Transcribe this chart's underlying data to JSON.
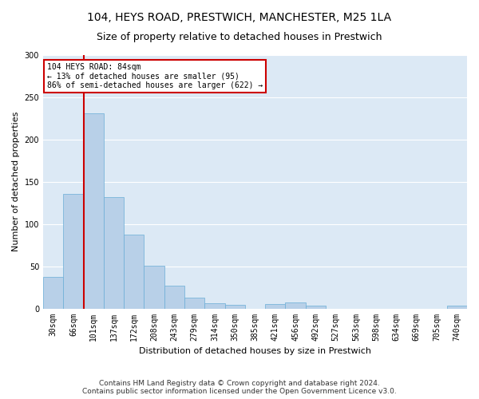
{
  "title1": "104, HEYS ROAD, PRESTWICH, MANCHESTER, M25 1LA",
  "title2": "Size of property relative to detached houses in Prestwich",
  "xlabel": "Distribution of detached houses by size in Prestwich",
  "ylabel": "Number of detached properties",
  "categories": [
    "30sqm",
    "66sqm",
    "101sqm",
    "137sqm",
    "172sqm",
    "208sqm",
    "243sqm",
    "279sqm",
    "314sqm",
    "350sqm",
    "385sqm",
    "421sqm",
    "456sqm",
    "492sqm",
    "527sqm",
    "563sqm",
    "598sqm",
    "634sqm",
    "669sqm",
    "705sqm",
    "740sqm"
  ],
  "values": [
    37,
    136,
    231,
    132,
    87,
    51,
    27,
    13,
    6,
    4,
    0,
    5,
    7,
    3,
    0,
    0,
    0,
    0,
    0,
    0,
    3
  ],
  "bar_color": "#b8d0e8",
  "bar_edge_color": "#6aaed6",
  "vline_color": "#cc0000",
  "annotation_text": "104 HEYS ROAD: 84sqm\n← 13% of detached houses are smaller (95)\n86% of semi-detached houses are larger (622) →",
  "annotation_box_color": "#ffffff",
  "annotation_box_edge": "#cc0000",
  "ylim": [
    0,
    300
  ],
  "yticks": [
    0,
    50,
    100,
    150,
    200,
    250,
    300
  ],
  "bg_color": "#dce9f5",
  "fig_color": "#ffffff",
  "grid_color": "#ffffff",
  "footnote": "Contains HM Land Registry data © Crown copyright and database right 2024.\nContains public sector information licensed under the Open Government Licence v3.0.",
  "title1_fontsize": 10,
  "title2_fontsize": 9,
  "xlabel_fontsize": 8,
  "ylabel_fontsize": 8,
  "tick_fontsize": 7,
  "annot_fontsize": 7,
  "footnote_fontsize": 6.5
}
